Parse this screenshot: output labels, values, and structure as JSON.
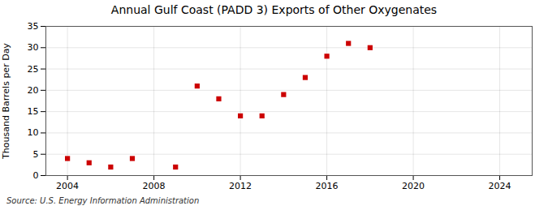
{
  "chart_data": {
    "type": "scatter",
    "title": "Annual Gulf Coast (PADD 3) Exports of Other Oxygenates",
    "y_label": "Thousand Barrels per Day",
    "annotation": "Source: U.S. Energy Information Administration",
    "x": [
      2004,
      2005,
      2006,
      2007,
      2009,
      2010,
      2011,
      2012,
      2013,
      2014,
      2015,
      2016,
      2017,
      2018
    ],
    "values": [
      4.0,
      3.0,
      2.0,
      4.0,
      2.0,
      21.0,
      18.0,
      14.0,
      14.0,
      19.0,
      23.0,
      28.0,
      31.0,
      30.0
    ],
    "color": "#cc0000",
    "marker": "square",
    "xlim": [
      2003,
      2025.5
    ],
    "ylim": [
      0,
      35
    ],
    "xticks": [
      2004,
      2008,
      2012,
      2016,
      2020,
      2024
    ],
    "yticks": [
      0,
      5,
      10,
      15,
      20,
      25,
      30,
      35
    ],
    "grid": true
  }
}
